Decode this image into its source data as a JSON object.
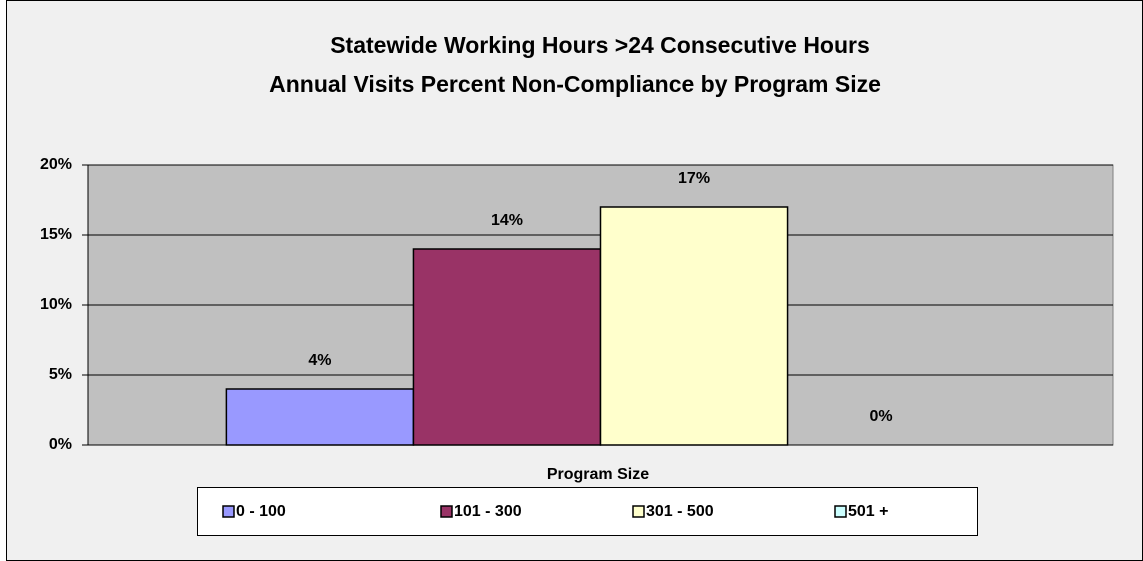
{
  "chart_data": {
    "type": "bar",
    "title": [
      "Statewide Working Hours >24 Consecutive Hours",
      "Annual Visits Percent  Non-Compliance by Program Size"
    ],
    "x_label": "Program Size",
    "categories": [
      "Program Size"
    ],
    "series": [
      {
        "name": "0 - 100",
        "color": "#9999ff",
        "values": [
          4
        ],
        "value_labels": [
          "4%"
        ]
      },
      {
        "name": "101 - 300",
        "color": "#993366",
        "values": [
          14
        ],
        "value_labels": [
          "14%"
        ]
      },
      {
        "name": "301 - 500",
        "color": "#ffffcc",
        "values": [
          17
        ],
        "value_labels": [
          "17%"
        ]
      },
      {
        "name": "501 +",
        "color": "#ccffff",
        "values": [
          0
        ],
        "value_labels": [
          "0%"
        ]
      }
    ],
    "ylim": [
      0,
      20
    ],
    "yticks": [
      {
        "value": 0,
        "label": "0%"
      },
      {
        "value": 5,
        "label": "5%"
      },
      {
        "value": 10,
        "label": "10%"
      },
      {
        "value": 15,
        "label": "15%"
      },
      {
        "value": 20,
        "label": "20%"
      }
    ],
    "grid": true,
    "legend": "bottom"
  }
}
